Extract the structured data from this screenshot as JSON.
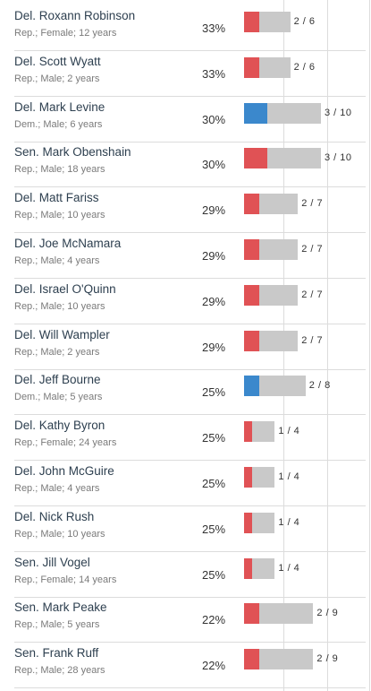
{
  "colors": {
    "republican": "#e05255",
    "democrat": "#3b88cc",
    "track": "#c9c9c9"
  },
  "rows": [
    {
      "name": "Del. Roxann Robinson",
      "meta": "Rep.; Female; 12 years",
      "pct": "33%",
      "frac": "2 / 6",
      "party": "rep",
      "num": 2,
      "den": 6
    },
    {
      "name": "Del. Scott Wyatt",
      "meta": "Rep.; Male; 2 years",
      "pct": "33%",
      "frac": "2 / 6",
      "party": "rep",
      "num": 2,
      "den": 6
    },
    {
      "name": "Del. Mark Levine",
      "meta": "Dem.; Male; 6 years",
      "pct": "30%",
      "frac": "3 / 10",
      "party": "dem",
      "num": 3,
      "den": 10
    },
    {
      "name": "Sen. Mark Obenshain",
      "meta": "Rep.; Male; 18 years",
      "pct": "30%",
      "frac": "3 / 10",
      "party": "rep",
      "num": 3,
      "den": 10
    },
    {
      "name": "Del. Matt Fariss",
      "meta": "Rep.; Male; 10 years",
      "pct": "29%",
      "frac": "2 / 7",
      "party": "rep",
      "num": 2,
      "den": 7
    },
    {
      "name": "Del. Joe McNamara",
      "meta": "Rep.; Male; 4 years",
      "pct": "29%",
      "frac": "2 / 7",
      "party": "rep",
      "num": 2,
      "den": 7
    },
    {
      "name": "Del. Israel O'Quinn",
      "meta": "Rep.; Male; 10 years",
      "pct": "29%",
      "frac": "2 / 7",
      "party": "rep",
      "num": 2,
      "den": 7
    },
    {
      "name": "Del. Will Wampler",
      "meta": "Rep.; Male; 2 years",
      "pct": "29%",
      "frac": "2 / 7",
      "party": "rep",
      "num": 2,
      "den": 7
    },
    {
      "name": "Del. Jeff Bourne",
      "meta": "Dem.; Male; 5 years",
      "pct": "25%",
      "frac": "2 / 8",
      "party": "dem",
      "num": 2,
      "den": 8
    },
    {
      "name": "Del. Kathy Byron",
      "meta": "Rep.; Female; 24 years",
      "pct": "25%",
      "frac": "1 / 4",
      "party": "rep",
      "num": 1,
      "den": 4
    },
    {
      "name": "Del. John McGuire",
      "meta": "Rep.; Male; 4 years",
      "pct": "25%",
      "frac": "1 / 4",
      "party": "rep",
      "num": 1,
      "den": 4
    },
    {
      "name": "Del. Nick Rush",
      "meta": "Rep.; Male; 10 years",
      "pct": "25%",
      "frac": "1 / 4",
      "party": "rep",
      "num": 1,
      "den": 4
    },
    {
      "name": "Sen. Jill Vogel",
      "meta": "Rep.; Female; 14 years",
      "pct": "25%",
      "frac": "1 / 4",
      "party": "rep",
      "num": 1,
      "den": 4
    },
    {
      "name": "Sen. Mark Peake",
      "meta": "Rep.; Male; 5 years",
      "pct": "22%",
      "frac": "2 / 9",
      "party": "rep",
      "num": 2,
      "den": 9
    },
    {
      "name": "Sen. Frank Ruff",
      "meta": "Rep.; Male; 28 years",
      "pct": "22%",
      "frac": "2 / 9",
      "party": "rep",
      "num": 2,
      "den": 9
    }
  ]
}
